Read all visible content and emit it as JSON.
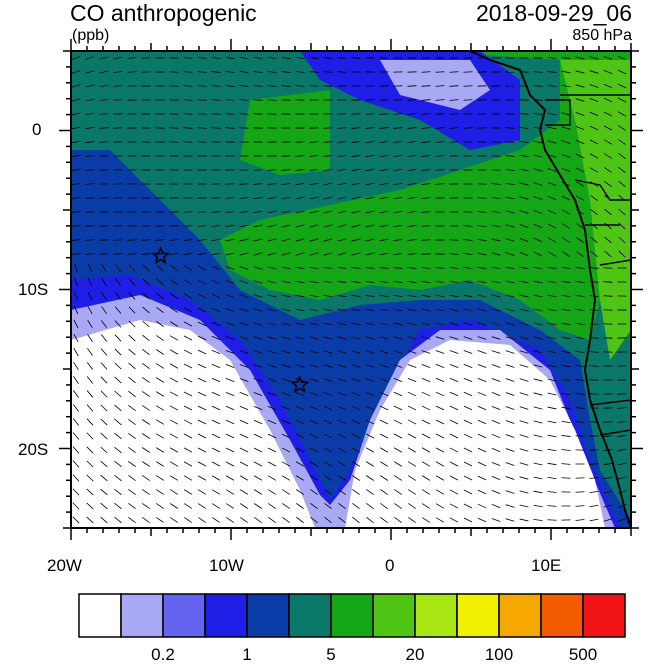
{
  "map": {
    "title_left": "CO anthropogenic",
    "units": "(ppb)",
    "title_right": "2018-09-29_06",
    "level": "850 hPa",
    "lon_ticks": [
      "20W",
      "10W",
      "0",
      "10E"
    ],
    "lat_ticks": [
      "0",
      "10S",
      "20S"
    ],
    "extent": {
      "lon": [
        -20,
        15
      ],
      "lat": [
        -25,
        5
      ]
    },
    "markers": [
      {
        "name": "site-1",
        "lon": -14.4,
        "lat": -7.9
      },
      {
        "name": "site-2",
        "lon": -5.7,
        "lat": -16.0
      }
    ]
  },
  "colorbar": {
    "colors": [
      "#ffffff",
      "#a8a8f4",
      "#6464f0",
      "#1e1ee6",
      "#0a3ca8",
      "#0a7868",
      "#14a614",
      "#50c414",
      "#a8e614",
      "#f0f000",
      "#f4a800",
      "#f45a00",
      "#f01414"
    ],
    "labels": [
      {
        "text": "0.2",
        "index": 2
      },
      {
        "text": "1",
        "index": 4
      },
      {
        "text": "5",
        "index": 6
      },
      {
        "text": "20",
        "index": 8
      },
      {
        "text": "100",
        "index": 10
      },
      {
        "text": "500",
        "index": 12
      }
    ]
  }
}
